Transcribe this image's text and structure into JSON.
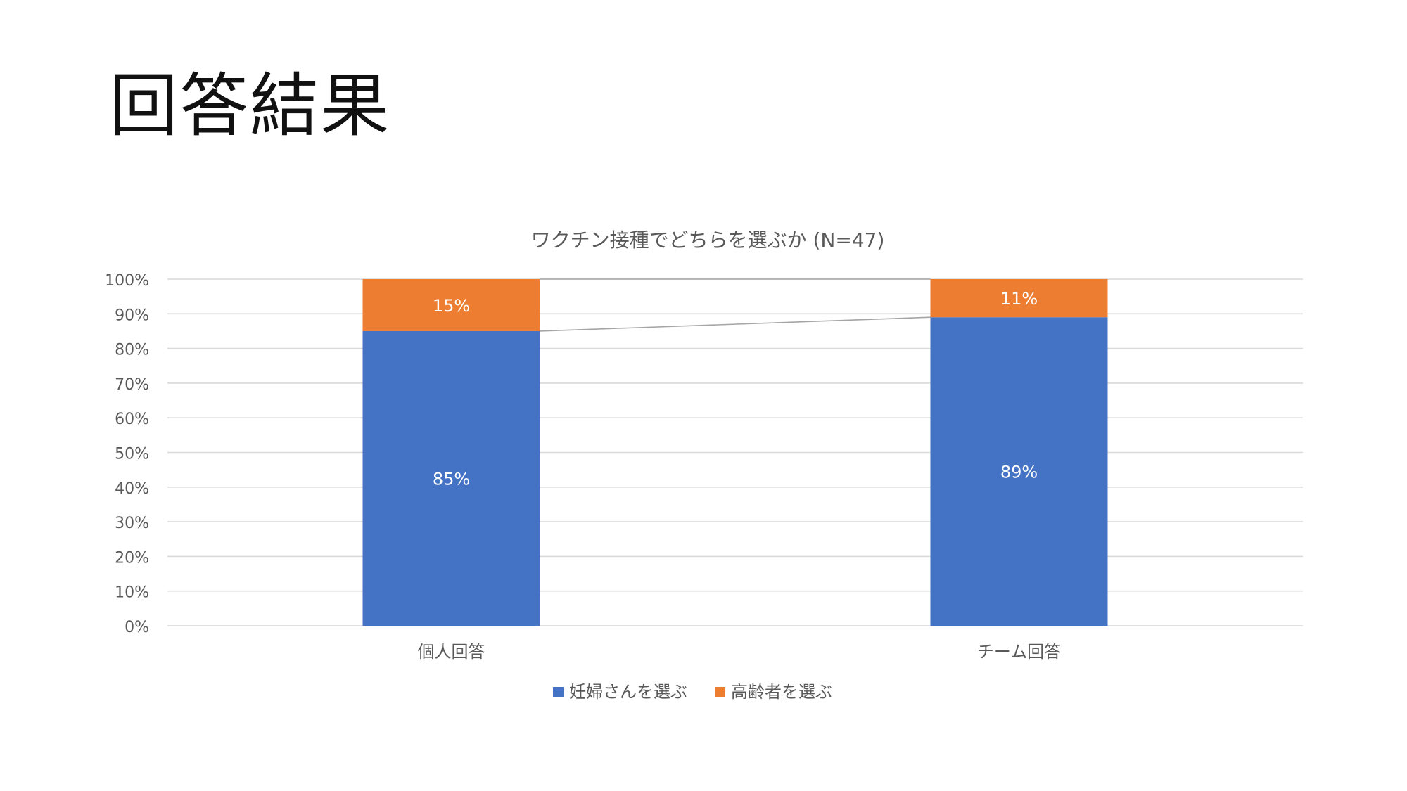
{
  "slide": {
    "title": "回答結果"
  },
  "chart_data": {
    "type": "bar",
    "stacked": true,
    "percent": true,
    "title": "ワクチン接種でどちらを選ぶか (N=47)",
    "categories": [
      "個人回答",
      "チーム回答"
    ],
    "series": [
      {
        "name": "妊婦さんを選ぶ",
        "values": [
          85,
          89
        ],
        "labels": [
          "85%",
          "89%"
        ],
        "color": "#4472C4"
      },
      {
        "name": "高齢者を選ぶ",
        "values": [
          15,
          11
        ],
        "labels": [
          "15%",
          "11%"
        ],
        "color": "#ED7D31"
      }
    ],
    "ylim": [
      0,
      100
    ],
    "yticks": [
      "0%",
      "10%",
      "20%",
      "30%",
      "40%",
      "50%",
      "60%",
      "70%",
      "80%",
      "90%",
      "100%"
    ],
    "grid": true,
    "series_lines": true,
    "legend_position": "bottom",
    "xlabel": "",
    "ylabel": ""
  }
}
